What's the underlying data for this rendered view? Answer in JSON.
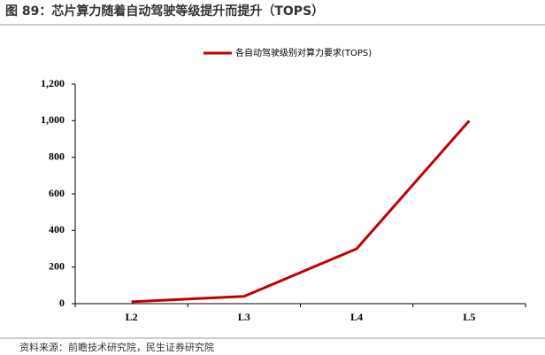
{
  "chart_data": {
    "type": "line",
    "title": "图 89：芯片算力随着自动驾驶等级提升而提升（TOPS）",
    "source": "资料来源：前瞻技术研究院，民生证券研究院",
    "categories": [
      "L2",
      "L3",
      "L4",
      "L5"
    ],
    "series": [
      {
        "name": "各自动驾驶级别对算力要求(TOPS)",
        "color": "#c00000",
        "values": [
          10,
          40,
          300,
          1000
        ]
      }
    ],
    "ylim": [
      0,
      1200
    ],
    "yticks": [
      0,
      200,
      400,
      600,
      800,
      {
        "value": 1000,
        "label": "1,000"
      },
      {
        "value": 1200,
        "label": "1,200"
      }
    ],
    "legend": "top"
  }
}
